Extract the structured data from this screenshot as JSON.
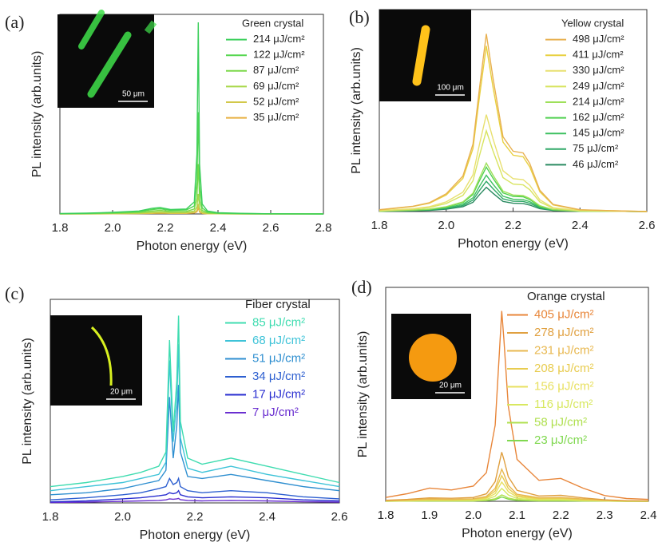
{
  "chart_data": [
    {
      "type": "line",
      "panel_label": "(a)",
      "legend_title": "Green crystal",
      "inset_scale": "50 μm",
      "xlabel": "Photon energy (eV)",
      "ylabel": "PL intensity (arb.units)",
      "x": [
        1.8,
        1.9,
        2.0,
        2.1,
        2.15,
        2.18,
        2.22,
        2.28,
        2.31,
        2.32,
        2.325,
        2.33,
        2.34,
        2.36,
        2.4,
        2.5,
        2.6,
        2.8
      ],
      "xlim": [
        1.8,
        2.8
      ],
      "xticks": [
        1.8,
        {
          "value": 2,
          "label": "2.0"
        },
        2.2,
        2.4,
        2.6,
        2.8
      ],
      "ylim": [
        0,
        100
      ],
      "series": [
        {
          "name": "214 μJ/cm²",
          "color": "#3ccf5c",
          "values": [
            0.2,
            0.4,
            0.8,
            1.5,
            2.8,
            3.2,
            2.2,
            2.5,
            6,
            30,
            96,
            25,
            5,
            1.5,
            0.6,
            0.3,
            0.1,
            0
          ]
        },
        {
          "name": "122 μJ/cm²",
          "color": "#55d64f",
          "values": [
            0.1,
            0.3,
            0.6,
            1.2,
            2.2,
            2.6,
            1.8,
            2,
            4,
            16,
            51,
            14,
            3,
            1,
            0.4,
            0.2,
            0.1,
            0
          ]
        },
        {
          "name": "87 μJ/cm²",
          "color": "#7cd94a",
          "values": [
            0.1,
            0.2,
            0.4,
            0.8,
            1.5,
            1.8,
            1.2,
            1.3,
            2.5,
            8,
            25,
            7,
            1.8,
            0.6,
            0.3,
            0.1,
            0,
            0
          ]
        },
        {
          "name": "69 μJ/cm²",
          "color": "#a9d84a",
          "values": [
            0.1,
            0.1,
            0.3,
            0.5,
            0.9,
            1.1,
            0.8,
            0.8,
            1.5,
            3.5,
            10,
            3,
            1,
            0.4,
            0.2,
            0.1,
            0,
            0
          ]
        },
        {
          "name": "52 μJ/cm²",
          "color": "#d2c84a",
          "values": [
            0,
            0.1,
            0.2,
            0.3,
            0.5,
            0.6,
            0.4,
            0.5,
            0.8,
            1.8,
            5,
            1.5,
            0.5,
            0.2,
            0.1,
            0,
            0,
            0
          ]
        },
        {
          "name": "35 μJ/cm²",
          "color": "#e8b040",
          "values": [
            0,
            0,
            0.1,
            0.2,
            0.3,
            0.4,
            0.3,
            0.3,
            0.5,
            1,
            3,
            0.9,
            0.3,
            0.1,
            0.1,
            0,
            0,
            0
          ]
        }
      ]
    },
    {
      "type": "line",
      "panel_label": "(b)",
      "legend_title": "Yellow crystal",
      "inset_scale": "100 μm",
      "xlabel": "Photon energy (eV)",
      "ylabel": "PL intensity (arb.units)",
      "x": [
        1.8,
        1.9,
        1.95,
        2.0,
        2.05,
        2.08,
        2.1,
        2.12,
        2.14,
        2.17,
        2.2,
        2.23,
        2.25,
        2.28,
        2.32,
        2.4,
        2.5,
        2.6
      ],
      "xlim": [
        1.8,
        2.6
      ],
      "xticks": [
        1.8,
        {
          "value": 2,
          "label": "2.0"
        },
        2.2,
        2.4,
        2.6
      ],
      "ylim": [
        0,
        100
      ],
      "series": [
        {
          "name": "498 μJ/cm²",
          "color": "#e8b050",
          "values": [
            0.9,
            2.6,
            4.4,
            8.8,
            17.6,
            33.4,
            61.6,
            88,
            66,
            37,
            29.9,
            29,
            23.8,
            10.6,
            3.5,
            0.9,
            0.4,
            0
          ]
        },
        {
          "name": "411 μJ/cm²",
          "color": "#e8d040",
          "values": [
            0.8,
            2.5,
            4.1,
            8.2,
            16.4,
            31.2,
            57.4,
            82,
            61.5,
            34.4,
            27.9,
            27.1,
            22.1,
            9.8,
            3.3,
            0.8,
            0.4,
            0
          ]
        },
        {
          "name": "330 μJ/cm²",
          "color": "#e8e070",
          "values": [
            0.5,
            1.4,
            2.4,
            4.8,
            9.6,
            18.2,
            33.6,
            48,
            36,
            20.2,
            16.3,
            15.8,
            13,
            5.8,
            1.9,
            0.5,
            0.2,
            0
          ]
        },
        {
          "name": "249 μJ/cm²",
          "color": "#d8e460",
          "values": [
            0.4,
            1.2,
            2,
            4,
            8,
            15.2,
            28,
            40,
            30,
            16.8,
            13.6,
            13.2,
            10.8,
            4.8,
            1.6,
            0.4,
            0.2,
            0
          ]
        },
        {
          "name": "214 μJ/cm²",
          "color": "#9ee05a",
          "values": [
            0.2,
            0.7,
            1.2,
            2.4,
            4.8,
            9.1,
            16.8,
            24,
            18,
            10.1,
            8.2,
            7.9,
            6.5,
            2.9,
            1,
            0.2,
            0.1,
            0
          ]
        },
        {
          "name": "162 μJ/cm²",
          "color": "#50d050",
          "values": [
            0.2,
            0.7,
            1.1,
            2.2,
            4.4,
            8.4,
            15.4,
            22,
            16.5,
            9.2,
            7.5,
            7.3,
            5.9,
            2.6,
            0.9,
            0.2,
            0.1,
            0
          ]
        },
        {
          "name": "145 μJ/cm²",
          "color": "#3cc060",
          "values": [
            0.2,
            0.5,
            0.9,
            1.8,
            3.6,
            6.8,
            12.6,
            18,
            13.5,
            7.6,
            6.1,
            5.9,
            4.9,
            2.2,
            0.7,
            0.2,
            0.1,
            0
          ]
        },
        {
          "name": "75 μJ/cm²",
          "color": "#30a868",
          "values": [
            0.2,
            0.5,
            0.8,
            1.5,
            3,
            5.7,
            10.5,
            15,
            11.3,
            6.3,
            5.1,
            5,
            4.1,
            1.8,
            0.6,
            0.2,
            0.1,
            0
          ]
        },
        {
          "name": "46 μJ/cm²",
          "color": "#2a8a60",
          "values": [
            0.1,
            0.4,
            0.6,
            1.2,
            2.4,
            4.6,
            8.4,
            12,
            9,
            5,
            4.1,
            4,
            3.2,
            1.4,
            0.5,
            0.1,
            0.1,
            0
          ]
        }
      ]
    },
    {
      "type": "line",
      "panel_label": "(c)",
      "legend_title": "Fiber crystal",
      "inset_scale": "20 μm",
      "xlabel": "Photon energy (eV)",
      "ylabel": "PL intensity (arb.units)",
      "x": [
        1.8,
        1.9,
        2.0,
        2.05,
        2.1,
        2.12,
        2.13,
        2.14,
        2.15,
        2.155,
        2.16,
        2.18,
        2.22,
        2.3,
        2.4,
        2.5,
        2.6
      ],
      "xlim": [
        1.8,
        2.6
      ],
      "xticks": [
        1.8,
        {
          "value": 2,
          "label": "2.0"
        },
        2.2,
        2.4,
        2.6
      ],
      "ylim": [
        0,
        100
      ],
      "series": [
        {
          "name": "85 μJ/cm²",
          "color": "#3fdcb0",
          "values": [
            8,
            10,
            13,
            15,
            18,
            25,
            80,
            35,
            60,
            92,
            40,
            22,
            19,
            22,
            18,
            14,
            10
          ]
        },
        {
          "name": "68 μJ/cm²",
          "color": "#3ec3d8",
          "values": [
            6,
            8,
            10,
            12,
            14,
            20,
            70,
            30,
            50,
            78,
            32,
            17,
            15,
            18,
            14,
            11,
            8
          ]
        },
        {
          "name": "51 μJ/cm²",
          "color": "#2f8fd0",
          "values": [
            4,
            5,
            7,
            9,
            11,
            16,
            52,
            22,
            38,
            58,
            25,
            13,
            12,
            14,
            11,
            8,
            6
          ]
        },
        {
          "name": "34 μJ/cm²",
          "color": "#2d5fd0",
          "values": [
            1.5,
            2.5,
            4,
            5,
            7,
            8,
            12,
            9,
            10,
            12,
            8,
            6,
            5,
            6,
            5,
            3,
            2
          ]
        },
        {
          "name": "17 μJ/cm²",
          "color": "#2a2fd0",
          "values": [
            0.5,
            1,
            2,
            2.5,
            3.5,
            4,
            5,
            4.5,
            5,
            6,
            4,
            3,
            2.5,
            3,
            2.5,
            1.5,
            1
          ]
        },
        {
          "name": "7 μJ/cm²",
          "color": "#6a2fd0",
          "values": [
            0.2,
            0.4,
            0.8,
            1,
            1.2,
            1.5,
            2,
            1.8,
            2,
            2.2,
            1.6,
            1.2,
            1,
            1.2,
            1,
            0.6,
            0.4
          ]
        }
      ]
    },
    {
      "type": "line",
      "panel_label": "(d)",
      "legend_title": "Orange crystal",
      "inset_scale": "20 μm",
      "xlabel": "Photon energy (eV)",
      "ylabel": "PL intensity (arb.units)",
      "x": [
        1.8,
        1.85,
        1.9,
        1.95,
        2.0,
        2.03,
        2.05,
        2.06,
        2.065,
        2.07,
        2.08,
        2.1,
        2.15,
        2.2,
        2.25,
        2.3,
        2.35,
        2.4
      ],
      "xlim": [
        1.8,
        2.4
      ],
      "xticks": [
        1.8,
        1.9,
        {
          "value": 2,
          "label": "2.0"
        },
        2.1,
        2.2,
        2.3,
        2.4
      ],
      "ylim": [
        0,
        100
      ],
      "series": [
        {
          "name": "405 μJ/cm²",
          "color": "#e8863a",
          "values": [
            1.8,
            3.6,
            6.2,
            5.3,
            7.1,
            13.4,
            35.6,
            71.2,
            89,
            75.7,
            44.5,
            19.6,
            9.8,
            10.7,
            6.2,
            2.7,
            1.3,
            0.9
          ]
        },
        {
          "name": "278 μJ/cm²",
          "color": "#e0a040",
          "values": [
            0.5,
            0.9,
            1.6,
            1.4,
            1.8,
            3.5,
            9.2,
            18.4,
            23,
            19.6,
            11.5,
            5.1,
            2.5,
            2.8,
            1.6,
            0.7,
            0.3,
            0.2
          ]
        },
        {
          "name": "231 μJ/cm²",
          "color": "#e8b850",
          "values": [
            0.3,
            0.6,
            1.1,
            0.9,
            1.2,
            2.3,
            6,
            12,
            15,
            12.8,
            7.5,
            3.3,
            1.7,
            1.8,
            1.1,
            0.5,
            0.2,
            0.2
          ]
        },
        {
          "name": "208 μJ/cm²",
          "color": "#e8cc50",
          "values": [
            0.2,
            0.5,
            0.8,
            0.7,
            1,
            1.8,
            4.8,
            9.6,
            12,
            10.2,
            6,
            2.6,
            1.3,
            1.4,
            0.8,
            0.4,
            0.2,
            0.1
          ]
        },
        {
          "name": "156 μJ/cm²",
          "color": "#e8e060",
          "values": [
            0.2,
            0.4,
            0.6,
            0.5,
            0.7,
            1.4,
            3.6,
            7.2,
            9,
            7.7,
            4.5,
            2,
            1,
            1.1,
            0.6,
            0.3,
            0.1,
            0.1
          ]
        },
        {
          "name": "116 μJ/cm²",
          "color": "#d8e860",
          "values": [
            0.1,
            0.2,
            0.4,
            0.4,
            0.5,
            0.9,
            2.4,
            4.8,
            6,
            5.1,
            3,
            1.3,
            0.7,
            0.7,
            0.4,
            0.2,
            0.1,
            0.1
          ]
        },
        {
          "name": "58 μJ/cm²",
          "color": "#b0e050",
          "values": [
            0.1,
            0.1,
            0.2,
            0.2,
            0.2,
            0.5,
            1.2,
            2.4,
            3,
            2.6,
            1.5,
            0.7,
            0.3,
            0.4,
            0.2,
            0.1,
            0,
            0
          ]
        },
        {
          "name": "23 μJ/cm²",
          "color": "#80d850",
          "values": [
            0,
            0.1,
            0.1,
            0.1,
            0.2,
            0.3,
            0.8,
            1.6,
            2,
            1.7,
            1,
            0.4,
            0.2,
            0.2,
            0.1,
            0.1,
            0,
            0
          ]
        }
      ]
    }
  ]
}
